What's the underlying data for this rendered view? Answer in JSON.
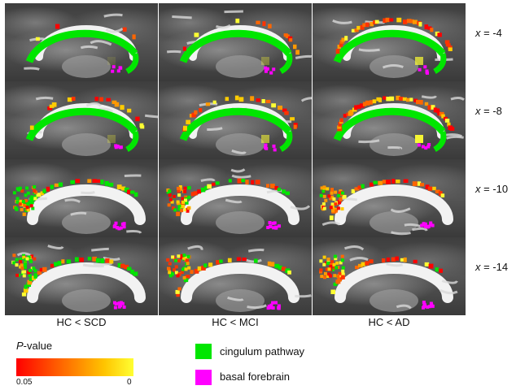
{
  "colors": {
    "cingulum": "#00e600",
    "basal_forebrain": "#ff00ff",
    "pvalue_low": "#ff0000",
    "pvalue_high": "#ffff33"
  },
  "columns": [
    "HC < SCD",
    "HC < MCI",
    "HC < AD"
  ],
  "rows": [
    {
      "axis": "x",
      "eq": " = ",
      "value": "-4"
    },
    {
      "axis": "x",
      "eq": " = ",
      "value": "-8"
    },
    {
      "axis": "x",
      "eq": " = ",
      "value": "-10"
    },
    {
      "axis": "x",
      "eq": " = ",
      "value": "-14"
    }
  ],
  "legend": {
    "pvalue": {
      "symbol": "P",
      "suffix": "-value",
      "min_label": "0.05",
      "max_label": "0"
    },
    "items": [
      {
        "label": "cingulum pathway",
        "color": "#00e600"
      },
      {
        "label": "basal forebrain",
        "color": "#ff00ff"
      }
    ]
  }
}
